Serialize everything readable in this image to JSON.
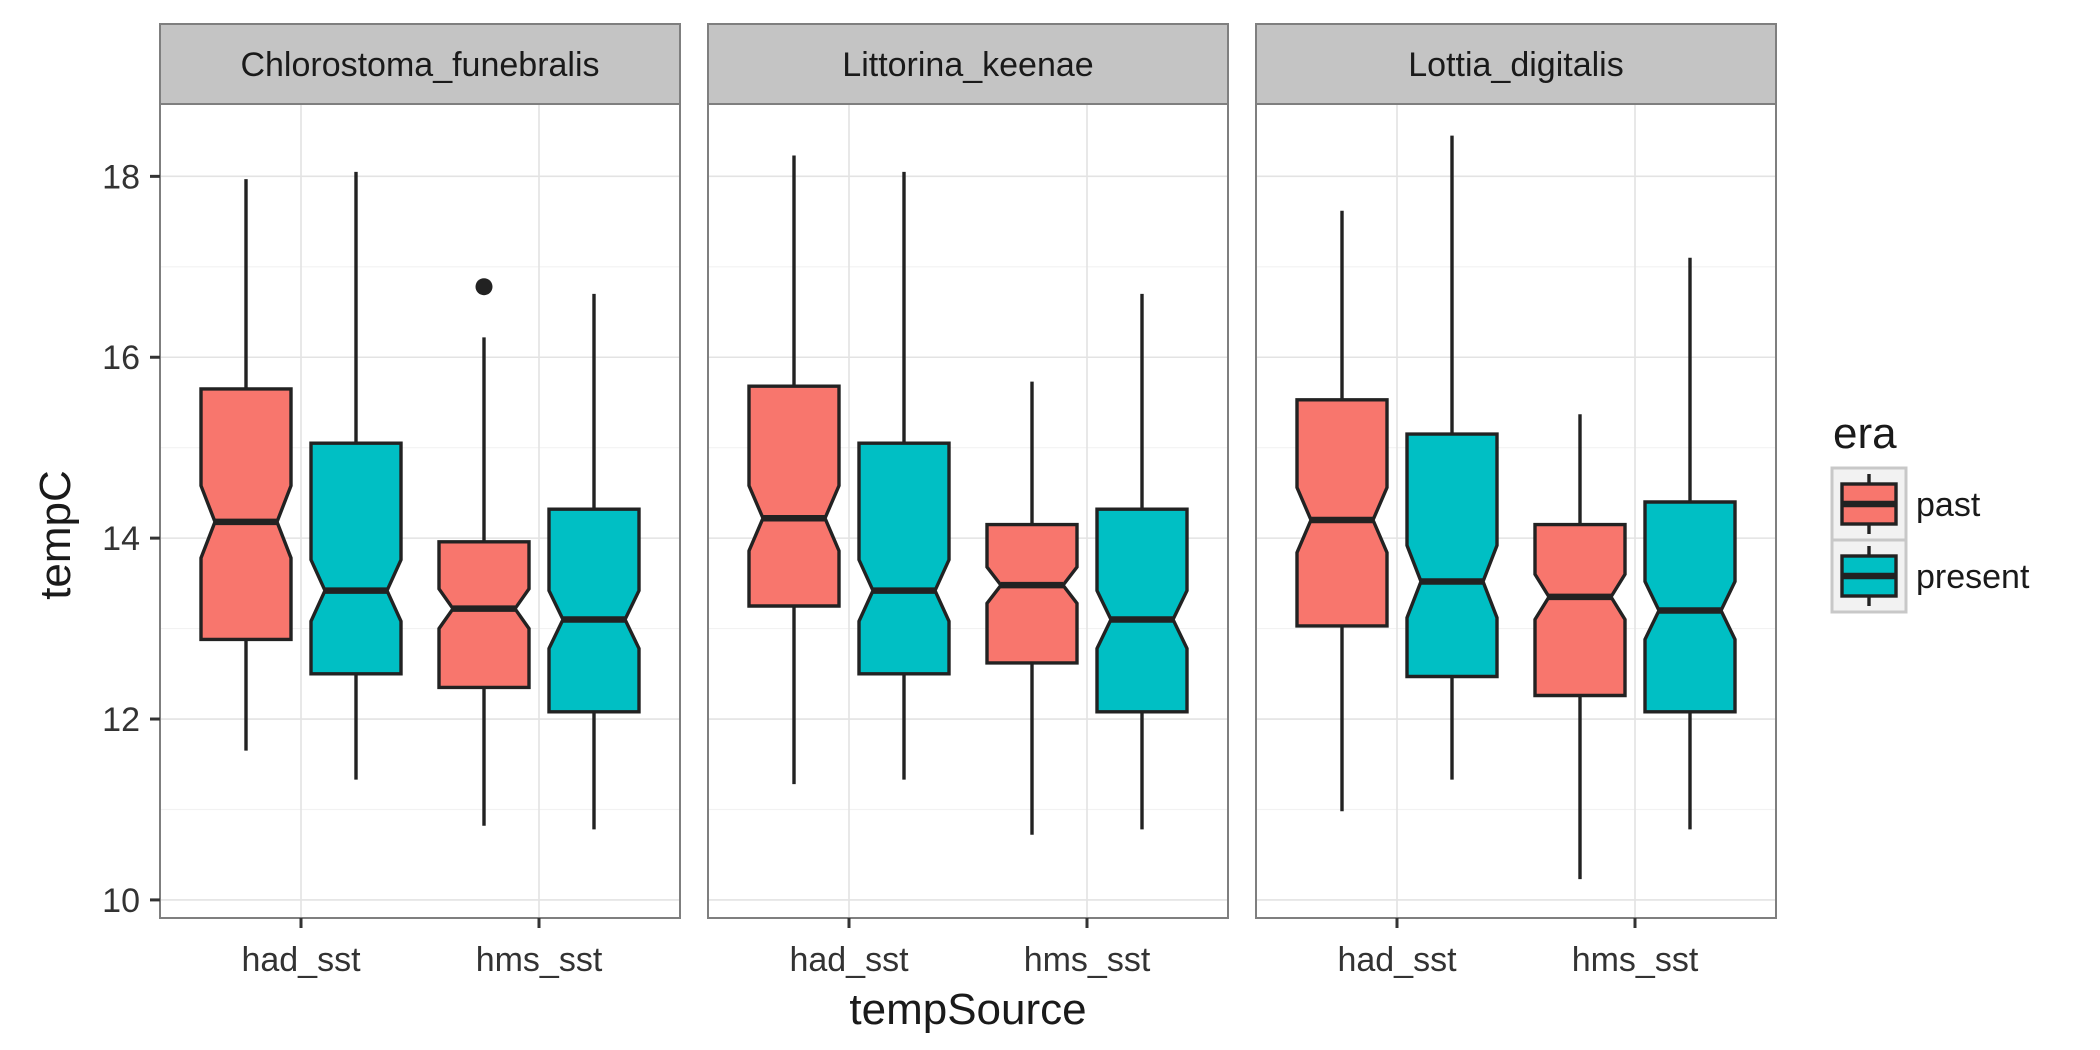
{
  "chart_data": {
    "type": "boxplot",
    "notched": true,
    "xlabel": "tempSource",
    "ylabel": "tempC",
    "ylim": [
      9.8,
      18.8
    ],
    "yticks": [
      10,
      12,
      14,
      16,
      18
    ],
    "categories": [
      "had_sst",
      "hms_sst"
    ],
    "facets": [
      "Chlorostoma_funebralis",
      "Littorina_keenae",
      "Lottia_digitalis"
    ],
    "grid": true,
    "legend": {
      "title": "era",
      "position": "right",
      "entries": [
        {
          "name": "past",
          "color": "#F8766D"
        },
        {
          "name": "present",
          "color": "#00BFC4"
        }
      ]
    },
    "panels": [
      {
        "facet": "Chlorostoma_funebralis",
        "boxes": [
          {
            "category": "had_sst",
            "era": "past",
            "whisker_low": 11.65,
            "q1": 12.88,
            "median": 14.18,
            "q3": 15.65,
            "whisker_high": 17.97,
            "notch_low": 13.78,
            "notch_high": 14.58,
            "outliers": []
          },
          {
            "category": "had_sst",
            "era": "present",
            "whisker_low": 11.33,
            "q1": 12.5,
            "median": 13.42,
            "q3": 15.05,
            "whisker_high": 18.05,
            "notch_low": 13.08,
            "notch_high": 13.76,
            "outliers": []
          },
          {
            "category": "hms_sst",
            "era": "past",
            "whisker_low": 10.82,
            "q1": 12.35,
            "median": 13.22,
            "q3": 13.96,
            "whisker_high": 16.22,
            "notch_low": 13.0,
            "notch_high": 13.44,
            "outliers": [
              16.78
            ]
          },
          {
            "category": "hms_sst",
            "era": "present",
            "whisker_low": 10.78,
            "q1": 12.08,
            "median": 13.1,
            "q3": 14.32,
            "whisker_high": 16.7,
            "notch_low": 12.78,
            "notch_high": 13.42,
            "outliers": []
          }
        ]
      },
      {
        "facet": "Littorina_keenae",
        "boxes": [
          {
            "category": "had_sst",
            "era": "past",
            "whisker_low": 11.28,
            "q1": 13.25,
            "median": 14.22,
            "q3": 15.68,
            "whisker_high": 18.23,
            "notch_low": 13.86,
            "notch_high": 14.58,
            "outliers": []
          },
          {
            "category": "had_sst",
            "era": "present",
            "whisker_low": 11.33,
            "q1": 12.5,
            "median": 13.42,
            "q3": 15.05,
            "whisker_high": 18.05,
            "notch_low": 13.08,
            "notch_high": 13.76,
            "outliers": []
          },
          {
            "category": "hms_sst",
            "era": "past",
            "whisker_low": 10.72,
            "q1": 12.62,
            "median": 13.48,
            "q3": 14.15,
            "whisker_high": 15.73,
            "notch_low": 13.28,
            "notch_high": 13.68,
            "outliers": []
          },
          {
            "category": "hms_sst",
            "era": "present",
            "whisker_low": 10.78,
            "q1": 12.08,
            "median": 13.1,
            "q3": 14.32,
            "whisker_high": 16.7,
            "notch_low": 12.78,
            "notch_high": 13.42,
            "outliers": []
          }
        ]
      },
      {
        "facet": "Lottia_digitalis",
        "boxes": [
          {
            "category": "had_sst",
            "era": "past",
            "whisker_low": 10.98,
            "q1": 13.03,
            "median": 14.2,
            "q3": 15.53,
            "whisker_high": 17.62,
            "notch_low": 13.84,
            "notch_high": 14.56,
            "outliers": []
          },
          {
            "category": "had_sst",
            "era": "present",
            "whisker_low": 11.33,
            "q1": 12.47,
            "median": 13.52,
            "q3": 15.15,
            "whisker_high": 18.45,
            "notch_low": 13.12,
            "notch_high": 13.92,
            "outliers": []
          },
          {
            "category": "hms_sst",
            "era": "past",
            "whisker_low": 10.23,
            "q1": 12.26,
            "median": 13.35,
            "q3": 14.15,
            "whisker_high": 15.37,
            "notch_low": 13.1,
            "notch_high": 13.6,
            "outliers": []
          },
          {
            "category": "hms_sst",
            "era": "present",
            "whisker_low": 10.78,
            "q1": 12.08,
            "median": 13.2,
            "q3": 14.4,
            "whisker_high": 17.1,
            "notch_low": 12.88,
            "notch_high": 13.52,
            "outliers": []
          }
        ]
      }
    ]
  }
}
